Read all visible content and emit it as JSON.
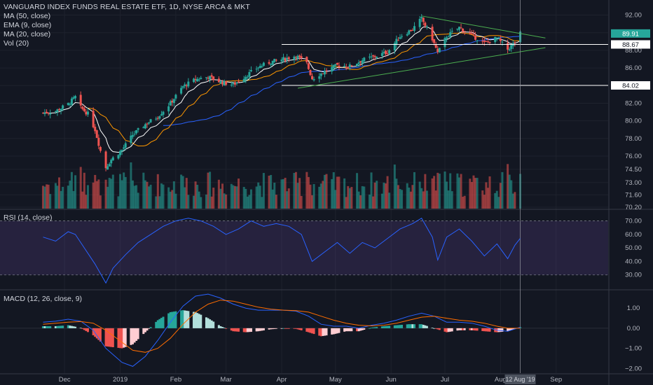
{
  "chart_data": [
    {
      "type": "candlestick",
      "title": "VANGUARD INDEX FUNDS REAL ESTATE ETF, 1D, NYSE ARCA & MKT",
      "indicators": [
        "MA (50, close)",
        "EMA (9, close)",
        "MA (20, close)",
        "Vol (20)"
      ],
      "y_ticks": [
        "92.00",
        "90.00",
        "88.00",
        "86.00",
        "84.00",
        "82.00",
        "80.00",
        "78.00",
        "76.00",
        "74.50",
        "73.00",
        "71.60",
        "70.20"
      ],
      "x_ticks": [
        "Dec",
        "2019",
        "Feb",
        "Mar",
        "Apr",
        "May",
        "Jun",
        "Jul",
        "Aug",
        "Sep"
      ],
      "ylim": [
        70.2,
        92.6
      ],
      "price_labels": [
        {
          "text": "89.91",
          "value": 89.91,
          "color": "#26a69a",
          "type": "last"
        },
        {
          "text": "88.67",
          "value": 88.67,
          "color": "#ffffff",
          "type": "level"
        },
        {
          "text": "84.02",
          "value": 84.02,
          "color": "#ffffff",
          "type": "level"
        }
      ],
      "horizontal_levels": [
        {
          "value": 88.67,
          "x_start": "2019-04-01"
        },
        {
          "value": 84.02,
          "x_start": "2019-04-01"
        }
      ],
      "trendlines": [
        {
          "from": [
            "2019-06-18",
            91.9
          ],
          "to": [
            "2019-08-26",
            89.4
          ]
        },
        {
          "from": [
            "2019-04-10",
            83.7
          ],
          "to": [
            "2019-08-26",
            88.3
          ]
        }
      ],
      "crosshair_date": "12 Aug '19",
      "close_series": [
        [
          "2018-11-19",
          80.9
        ],
        [
          "2018-11-26",
          81.1
        ],
        [
          "2018-12-03",
          81.9
        ],
        [
          "2018-12-07",
          82.7
        ],
        [
          "2018-12-10",
          81.5
        ],
        [
          "2018-12-14",
          80.8
        ],
        [
          "2018-12-18",
          79.0
        ],
        [
          "2018-12-21",
          76.6
        ],
        [
          "2018-12-24",
          74.7
        ],
        [
          "2018-12-27",
          75.6
        ],
        [
          "2019-01-02",
          76.7
        ],
        [
          "2019-01-08",
          78.4
        ],
        [
          "2019-01-15",
          79.6
        ],
        [
          "2019-01-22",
          80.5
        ],
        [
          "2019-01-29",
          82.0
        ],
        [
          "2019-02-05",
          83.9
        ],
        [
          "2019-02-12",
          84.7
        ],
        [
          "2019-02-19",
          85.0
        ],
        [
          "2019-02-26",
          84.4
        ],
        [
          "2019-03-05",
          84.1
        ],
        [
          "2019-03-12",
          85.1
        ],
        [
          "2019-03-19",
          86.1
        ],
        [
          "2019-03-26",
          86.7
        ],
        [
          "2019-04-02",
          87.0
        ],
        [
          "2019-04-09",
          87.4
        ],
        [
          "2019-04-15",
          86.5
        ],
        [
          "2019-04-18",
          84.8
        ],
        [
          "2019-04-25",
          85.6
        ],
        [
          "2019-05-02",
          86.3
        ],
        [
          "2019-05-09",
          86.2
        ],
        [
          "2019-05-16",
          86.9
        ],
        [
          "2019-05-23",
          87.3
        ],
        [
          "2019-05-30",
          87.8
        ],
        [
          "2019-06-06",
          89.6
        ],
        [
          "2019-06-13",
          90.4
        ],
        [
          "2019-06-18",
          91.6
        ],
        [
          "2019-06-24",
          89.3
        ],
        [
          "2019-06-27",
          87.7
        ],
        [
          "2019-07-02",
          89.6
        ],
        [
          "2019-07-09",
          90.6
        ],
        [
          "2019-07-16",
          89.7
        ],
        [
          "2019-07-23",
          88.8
        ],
        [
          "2019-07-30",
          89.4
        ],
        [
          "2019-08-05",
          88.1
        ],
        [
          "2019-08-09",
          88.9
        ],
        [
          "2019-08-12",
          89.91
        ]
      ]
    },
    {
      "type": "line",
      "title": "RSI (14, close)",
      "y_ticks": [
        "70.00",
        "60.00",
        "50.00",
        "40.00",
        "30.00"
      ],
      "ylim": [
        20,
        76
      ],
      "band": [
        30,
        70
      ],
      "values": [
        [
          "2018-11-19",
          58
        ],
        [
          "2018-11-26",
          55
        ],
        [
          "2018-12-03",
          62
        ],
        [
          "2018-12-07",
          60
        ],
        [
          "2018-12-12",
          50
        ],
        [
          "2018-12-18",
          38
        ],
        [
          "2018-12-24",
          24
        ],
        [
          "2018-12-28",
          35
        ],
        [
          "2019-01-04",
          45
        ],
        [
          "2019-01-11",
          54
        ],
        [
          "2019-01-18",
          60
        ],
        [
          "2019-01-25",
          66
        ],
        [
          "2019-02-01",
          70
        ],
        [
          "2019-02-08",
          72
        ],
        [
          "2019-02-15",
          70
        ],
        [
          "2019-02-22",
          66
        ],
        [
          "2019-03-01",
          60
        ],
        [
          "2019-03-08",
          64
        ],
        [
          "2019-03-15",
          70
        ],
        [
          "2019-03-22",
          66
        ],
        [
          "2019-03-29",
          68
        ],
        [
          "2019-04-05",
          66
        ],
        [
          "2019-04-12",
          60
        ],
        [
          "2019-04-18",
          40
        ],
        [
          "2019-04-25",
          47
        ],
        [
          "2019-05-02",
          54
        ],
        [
          "2019-05-09",
          46
        ],
        [
          "2019-05-16",
          54
        ],
        [
          "2019-05-23",
          50
        ],
        [
          "2019-05-30",
          57
        ],
        [
          "2019-06-06",
          64
        ],
        [
          "2019-06-13",
          68
        ],
        [
          "2019-06-18",
          72
        ],
        [
          "2019-06-24",
          58
        ],
        [
          "2019-06-27",
          41
        ],
        [
          "2019-07-02",
          58
        ],
        [
          "2019-07-09",
          64
        ],
        [
          "2019-07-16",
          55
        ],
        [
          "2019-07-23",
          44
        ],
        [
          "2019-07-30",
          53
        ],
        [
          "2019-08-05",
          42
        ],
        [
          "2019-08-09",
          52
        ],
        [
          "2019-08-12",
          57
        ]
      ]
    },
    {
      "type": "macd",
      "title": "MACD (12, 26, close, 9)",
      "y_ticks": [
        "1.00",
        "0.00",
        "−1.00",
        "−2.00"
      ],
      "ylim": [
        -2.2,
        1.6
      ],
      "macd_line": [
        [
          "2018-11-19",
          0.3
        ],
        [
          "2018-11-26",
          0.35
        ],
        [
          "2018-12-03",
          0.45
        ],
        [
          "2018-12-10",
          0.35
        ],
        [
          "2018-12-17",
          -0.1
        ],
        [
          "2018-12-24",
          -1.0
        ],
        [
          "2019-01-02",
          -1.7
        ],
        [
          "2019-01-08",
          -1.9
        ],
        [
          "2019-01-15",
          -1.4
        ],
        [
          "2019-01-22",
          -0.6
        ],
        [
          "2019-01-29",
          0.3
        ],
        [
          "2019-02-05",
          1.1
        ],
        [
          "2019-02-12",
          1.6
        ],
        [
          "2019-02-19",
          1.7
        ],
        [
          "2019-02-26",
          1.5
        ],
        [
          "2019-03-05",
          1.2
        ],
        [
          "2019-03-12",
          1.0
        ],
        [
          "2019-03-19",
          0.9
        ],
        [
          "2019-03-26",
          0.9
        ],
        [
          "2019-04-02",
          0.9
        ],
        [
          "2019-04-09",
          0.85
        ],
        [
          "2019-04-16",
          0.6
        ],
        [
          "2019-04-23",
          0.2
        ],
        [
          "2019-04-30",
          0.1
        ],
        [
          "2019-05-07",
          0.1
        ],
        [
          "2019-05-14",
          0.0
        ],
        [
          "2019-05-21",
          0.15
        ],
        [
          "2019-05-28",
          0.25
        ],
        [
          "2019-06-04",
          0.4
        ],
        [
          "2019-06-11",
          0.6
        ],
        [
          "2019-06-18",
          0.75
        ],
        [
          "2019-06-25",
          0.6
        ],
        [
          "2019-07-02",
          0.3
        ],
        [
          "2019-07-09",
          0.3
        ],
        [
          "2019-07-16",
          0.25
        ],
        [
          "2019-07-23",
          0.1
        ],
        [
          "2019-07-30",
          -0.1
        ],
        [
          "2019-08-05",
          -0.15
        ],
        [
          "2019-08-12",
          0.05
        ]
      ],
      "signal_line": [
        [
          "2018-11-19",
          0.2
        ],
        [
          "2018-11-26",
          0.25
        ],
        [
          "2018-12-03",
          0.3
        ],
        [
          "2018-12-10",
          0.33
        ],
        [
          "2018-12-17",
          0.25
        ],
        [
          "2018-12-24",
          -0.1
        ],
        [
          "2019-01-02",
          -0.7
        ],
        [
          "2019-01-08",
          -1.1
        ],
        [
          "2019-01-15",
          -1.2
        ],
        [
          "2019-01-22",
          -1.0
        ],
        [
          "2019-01-29",
          -0.5
        ],
        [
          "2019-02-05",
          0.2
        ],
        [
          "2019-02-12",
          0.8
        ],
        [
          "2019-02-19",
          1.2
        ],
        [
          "2019-02-26",
          1.4
        ],
        [
          "2019-03-05",
          1.35
        ],
        [
          "2019-03-12",
          1.2
        ],
        [
          "2019-03-19",
          1.05
        ],
        [
          "2019-03-26",
          0.95
        ],
        [
          "2019-04-02",
          0.9
        ],
        [
          "2019-04-09",
          0.88
        ],
        [
          "2019-04-16",
          0.8
        ],
        [
          "2019-04-23",
          0.6
        ],
        [
          "2019-04-30",
          0.4
        ],
        [
          "2019-05-07",
          0.25
        ],
        [
          "2019-05-14",
          0.15
        ],
        [
          "2019-05-21",
          0.12
        ],
        [
          "2019-05-28",
          0.15
        ],
        [
          "2019-06-04",
          0.25
        ],
        [
          "2019-06-11",
          0.4
        ],
        [
          "2019-06-18",
          0.55
        ],
        [
          "2019-06-25",
          0.6
        ],
        [
          "2019-07-02",
          0.5
        ],
        [
          "2019-07-09",
          0.4
        ],
        [
          "2019-07-16",
          0.35
        ],
        [
          "2019-07-23",
          0.25
        ],
        [
          "2019-07-30",
          0.1
        ],
        [
          "2019-08-05",
          0.0
        ],
        [
          "2019-08-12",
          0.0
        ]
      ]
    }
  ],
  "colors": {
    "background": "#131722",
    "grid": "#1e222d",
    "up": "#26a69a",
    "down": "#ef5350",
    "ma50": "#2962ff",
    "ema9": "#ffffff",
    "ma20": "#ff9800",
    "trendline": "#4caf50",
    "rsi_line": "#2962ff",
    "rsi_band": "#7e57c2",
    "macd_line": "#2962ff",
    "signal_line": "#ff6d00",
    "axis_text": "#b2b5be",
    "crosshair_label_bg": "#4c525e"
  }
}
